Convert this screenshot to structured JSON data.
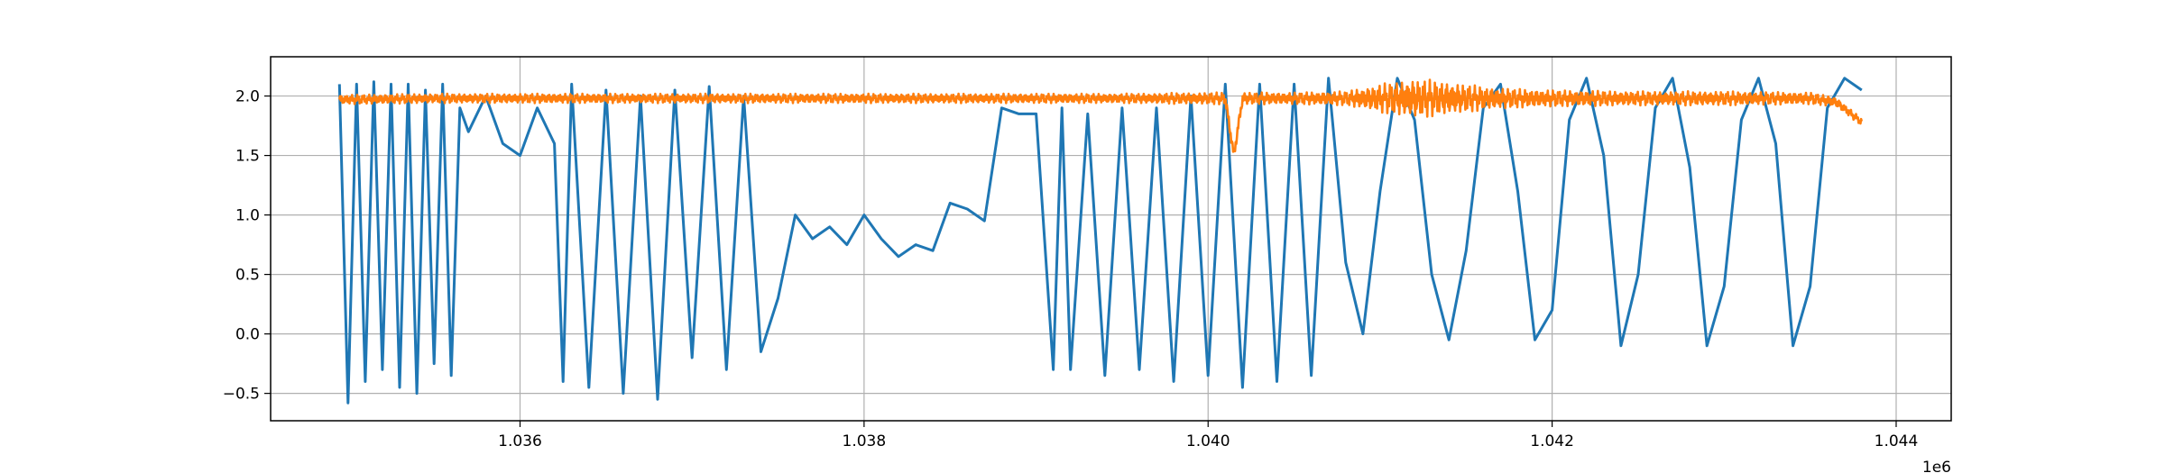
{
  "chart_data": {
    "type": "line",
    "title": "",
    "xlabel": "",
    "ylabel": "",
    "x_offset_label": "1e6",
    "xlim": [
      1034550,
      1044320
    ],
    "ylim": [
      -0.73,
      2.33
    ],
    "x_ticks": [
      1036000,
      1038000,
      1040000,
      1042000,
      1044000
    ],
    "x_tick_labels": [
      "1.036",
      "1.038",
      "1.040",
      "1.042",
      "1.044"
    ],
    "y_ticks": [
      -0.5,
      0.0,
      0.5,
      1.0,
      1.5,
      2.0
    ],
    "y_tick_labels": [
      "−0.5",
      "0.0",
      "0.5",
      "1.0",
      "1.5",
      "2.0"
    ],
    "grid": true,
    "legend": "none",
    "series": [
      {
        "color": "#1f77b4",
        "x": [
          1034950,
          1035000,
          1035050,
          1035100,
          1035150,
          1035200,
          1035250,
          1035300,
          1035350,
          1035400,
          1035450,
          1035500,
          1035550,
          1035600,
          1035650,
          1035700,
          1035800,
          1035900,
          1036000,
          1036100,
          1036200,
          1036250,
          1036300,
          1036400,
          1036500,
          1036600,
          1036700,
          1036800,
          1036900,
          1037000,
          1037100,
          1037200,
          1037300,
          1037400,
          1037500,
          1037600,
          1037700,
          1037800,
          1037900,
          1038000,
          1038100,
          1038200,
          1038300,
          1038400,
          1038500,
          1038600,
          1038700,
          1038800,
          1038900,
          1039000,
          1039100,
          1039150,
          1039200,
          1039300,
          1039400,
          1039500,
          1039600,
          1039700,
          1039800,
          1039900,
          1040000,
          1040100,
          1040200,
          1040300,
          1040400,
          1040500,
          1040600,
          1040700,
          1040800,
          1040900,
          1041000,
          1041100,
          1041200,
          1041300,
          1041400,
          1041500,
          1041600,
          1041700,
          1041800,
          1041900,
          1042000,
          1042100,
          1042200,
          1042300,
          1042400,
          1042500,
          1042600,
          1042700,
          1042800,
          1042900,
          1043000,
          1043100,
          1043200,
          1043300,
          1043400,
          1043500,
          1043600,
          1043700,
          1043800
        ],
        "y": [
          2.1,
          -0.58,
          2.1,
          -0.4,
          2.12,
          -0.3,
          2.1,
          -0.45,
          2.1,
          -0.5,
          2.05,
          -0.25,
          2.1,
          -0.35,
          1.9,
          1.7,
          2.0,
          1.6,
          1.5,
          1.9,
          1.6,
          -0.4,
          2.1,
          -0.45,
          2.05,
          -0.5,
          2.0,
          -0.55,
          2.05,
          -0.2,
          2.08,
          -0.3,
          2.0,
          -0.15,
          0.3,
          1.0,
          0.8,
          0.9,
          0.75,
          1.0,
          0.8,
          0.65,
          0.75,
          0.7,
          1.1,
          1.05,
          0.95,
          1.9,
          1.85,
          1.85,
          -0.3,
          1.9,
          -0.3,
          1.85,
          -0.35,
          1.9,
          -0.3,
          1.9,
          -0.4,
          2.0,
          -0.35,
          2.1,
          -0.45,
          2.1,
          -0.4,
          2.1,
          -0.35,
          2.15,
          0.6,
          0.0,
          1.2,
          2.15,
          1.8,
          0.5,
          -0.05,
          0.7,
          1.9,
          2.1,
          1.2,
          -0.05,
          0.2,
          1.8,
          2.15,
          1.5,
          -0.1,
          0.5,
          1.9,
          2.15,
          1.4,
          -0.1,
          0.4,
          1.8,
          2.15,
          1.6,
          -0.1,
          0.4,
          1.9,
          2.15,
          2.05
        ]
      },
      {
        "color": "#ff7f0e",
        "x": [
          1034950,
          1035500,
          1036000,
          1036500,
          1037000,
          1037500,
          1038000,
          1038500,
          1039000,
          1039500,
          1040000,
          1040100,
          1040150,
          1040200,
          1040500,
          1040800,
          1041000,
          1041200,
          1041400,
          1041600,
          1041800,
          1042000,
          1042500,
          1043000,
          1043500,
          1043650,
          1043800
        ],
        "y": [
          1.97,
          1.98,
          1.98,
          1.98,
          1.98,
          1.98,
          1.98,
          1.98,
          1.98,
          1.98,
          1.98,
          1.98,
          1.5,
          1.98,
          1.98,
          1.98,
          1.98,
          1.98,
          1.98,
          1.98,
          1.98,
          1.98,
          1.98,
          1.98,
          1.98,
          1.95,
          1.78
        ],
        "noise_amplitude": [
          0.04,
          0.04,
          0.04,
          0.04,
          0.04,
          0.04,
          0.04,
          0.04,
          0.04,
          0.04,
          0.05,
          0.05,
          0.05,
          0.05,
          0.05,
          0.06,
          0.12,
          0.17,
          0.14,
          0.1,
          0.08,
          0.07,
          0.06,
          0.06,
          0.05,
          0.04,
          0.03
        ]
      }
    ]
  }
}
